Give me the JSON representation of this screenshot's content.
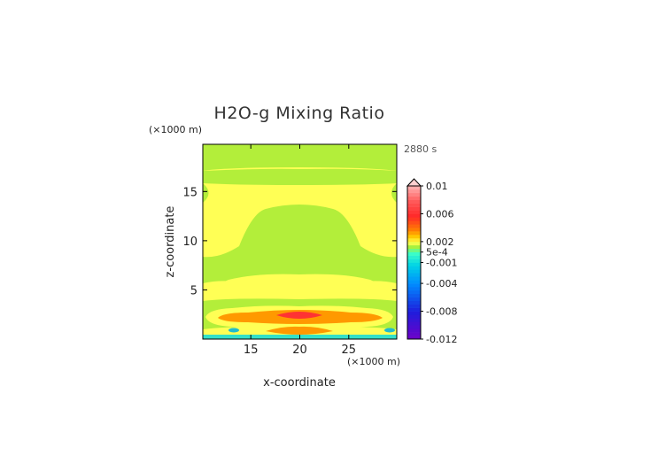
{
  "chart_data": {
    "type": "heatmap",
    "title": "H2O-g Mixing Ratio",
    "time_label": "2880 s",
    "xlabel": "x-coordinate",
    "ylabel": "z-coordinate",
    "x_scale_note": "(×1000 m)",
    "y_scale_note": "(×1000 m)",
    "xlim": [
      10.1,
      29.9
    ],
    "ylim": [
      0,
      19.8
    ],
    "x_ticks": [
      15,
      20,
      25
    ],
    "y_ticks": [
      5,
      10,
      15
    ],
    "colorbar": {
      "labels": [
        "0.01",
        "0.006",
        "0.002",
        "5e-4",
        "-0.001",
        "-0.004",
        "-0.008",
        "-0.012"
      ],
      "label_values": [
        0.01,
        0.006,
        0.002,
        0.0005,
        -0.001,
        -0.004,
        -0.008,
        -0.012
      ],
      "min": -0.012,
      "max": 0.01
    },
    "colors": {
      "yellow": "#ffff55",
      "green": "#b3ee3a",
      "orange": "#ff9900",
      "red": "#ff3333",
      "teal": "#33e0c8",
      "cyan": "#22bbcc"
    }
  }
}
